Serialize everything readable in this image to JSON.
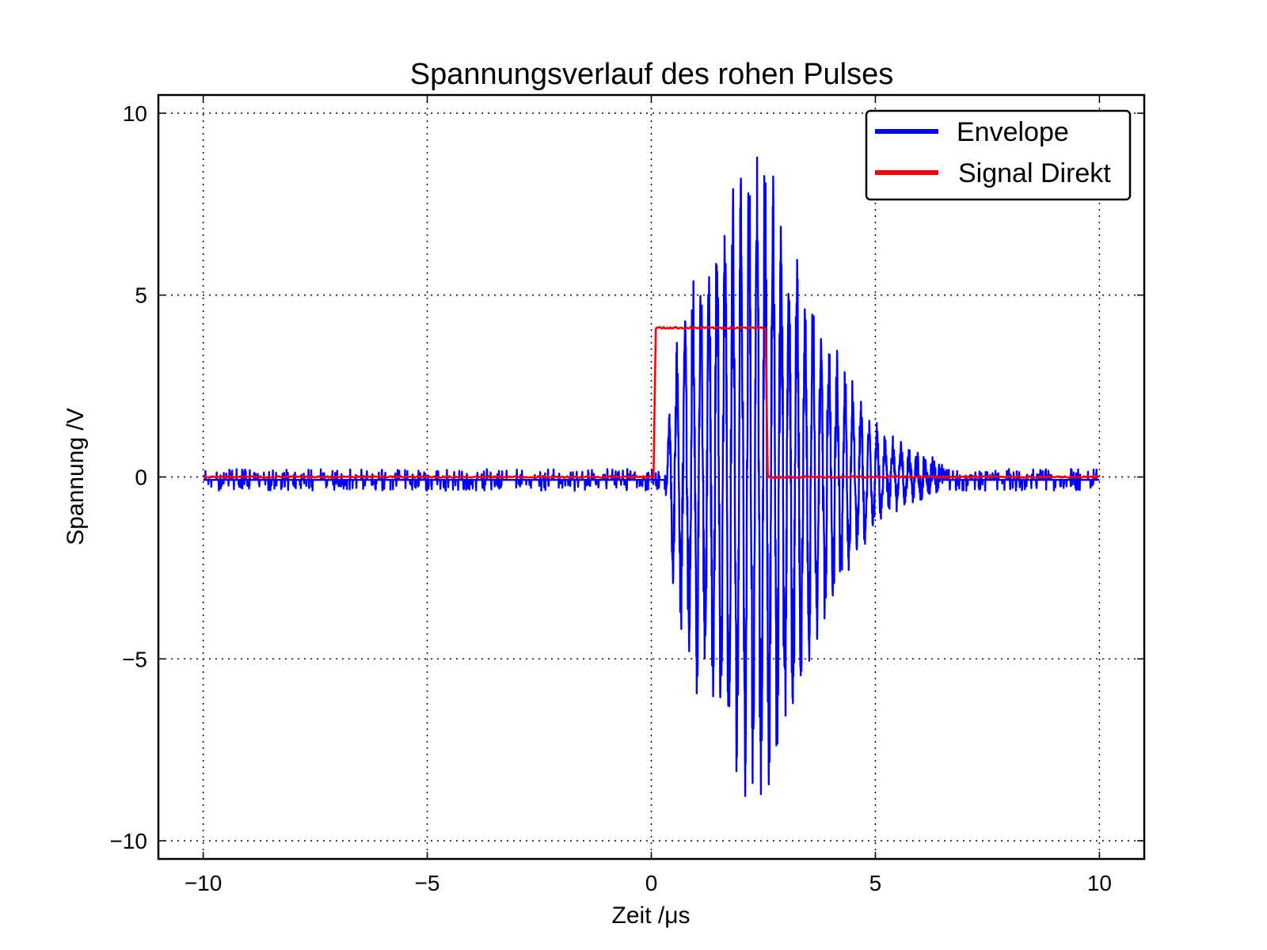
{
  "chart_data": {
    "type": "line",
    "title": "Spannungsverlauf des rohen Pulses",
    "xlabel": "Zeit /μs",
    "ylabel": "Spannung /V",
    "xlim": [
      -11,
      11
    ],
    "ylim": [
      -10.5,
      10.5
    ],
    "xticks": [
      -10,
      -5,
      0,
      5,
      10
    ],
    "yticks": [
      -10,
      -5,
      0,
      5,
      10
    ],
    "xtick_labels": [
      "−10",
      "−5",
      "0",
      "5",
      "10"
    ],
    "ytick_labels": [
      "−10",
      "−5",
      "0",
      "5",
      "10"
    ],
    "grid": true,
    "legend_position": "top-right",
    "series": [
      {
        "name": "Envelope",
        "color": "#0000ff",
        "description_of_shape": "noise around 0 from -10 to 0.3 µs; oscillating burst from 0.3 to ~6.5 µs with peak amplitude ~9.5 V near 2.5 µs; noise around 0 from 6.5 to 10 µs",
        "x": [
          -10,
          0.3,
          0.5,
          1.0,
          1.5,
          2.0,
          2.5,
          3.0,
          3.5,
          4.0,
          4.5,
          5.0,
          5.5,
          6.0,
          6.5,
          10
        ],
        "amplitude": [
          0.15,
          0.15,
          3.5,
          5.8,
          7.3,
          8.8,
          9.4,
          7.5,
          5.5,
          3.8,
          2.5,
          1.4,
          0.8,
          0.5,
          0.2,
          0.15
        ]
      },
      {
        "name": "Signal Direkt",
        "color": "#ff0000",
        "x": [
          -10,
          0.05,
          0.1,
          2.5,
          2.55,
          2.6,
          10
        ],
        "values": [
          0.0,
          0.0,
          4.1,
          4.1,
          4.1,
          0.0,
          0.0
        ]
      }
    ]
  }
}
